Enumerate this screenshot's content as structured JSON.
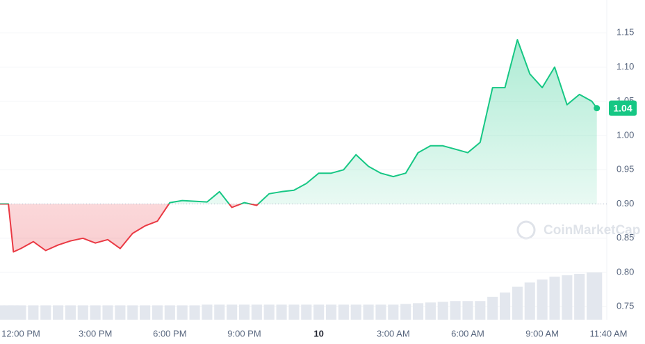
{
  "chart_data": {
    "type": "line",
    "x": [
      -0.84,
      -0.5,
      -0.3,
      0,
      0.5,
      1.0,
      1.5,
      2.0,
      2.5,
      3.0,
      3.5,
      4.0,
      4.5,
      5.0,
      5.5,
      6.0,
      6.5,
      7.0,
      7.5,
      8.0,
      8.5,
      9.0,
      9.5,
      10.0,
      10.5,
      11.0,
      11.5,
      12.0,
      12.5,
      13.0,
      13.5,
      14.0,
      14.5,
      15.0,
      15.5,
      16.0,
      16.5,
      17.0,
      17.5,
      18.0,
      18.5,
      19.0,
      19.5,
      20.0,
      20.5,
      21.0,
      21.5,
      22.0,
      22.5,
      23.0,
      23.2
    ],
    "series": [
      {
        "color": "#16c784",
        "below_color": "#ea3943",
        "values": [
          0.9,
          0.9,
          0.83,
          0.835,
          0.845,
          0.832,
          0.84,
          0.846,
          0.85,
          0.843,
          0.848,
          0.835,
          0.857,
          0.868,
          0.875,
          0.902,
          0.905,
          0.904,
          0.903,
          0.918,
          0.895,
          0.902,
          0.898,
          0.915,
          0.918,
          0.92,
          0.93,
          0.945,
          0.945,
          0.95,
          0.972,
          0.955,
          0.945,
          0.94,
          0.945,
          0.975,
          0.985,
          0.985,
          0.98,
          0.975,
          0.99,
          1.07,
          1.07,
          1.14,
          1.09,
          1.07,
          1.1,
          1.045,
          1.06,
          1.05,
          1.04
        ]
      }
    ],
    "volume": [
      1.0,
      1.0,
      1.0,
      1.0,
      1.0,
      1.0,
      1.0,
      1.0,
      1.0,
      1.0,
      1.0,
      1.0,
      1.0,
      1.0,
      1.0,
      1.0,
      1.0,
      1.0,
      1.05,
      1.05,
      1.05,
      1.05,
      1.05,
      1.05,
      1.05,
      1.05,
      1.05,
      1.05,
      1.05,
      1.05,
      1.05,
      1.05,
      1.05,
      1.05,
      1.1,
      1.15,
      1.2,
      1.25,
      1.3,
      1.3,
      1.3,
      1.6,
      1.9,
      2.3,
      2.6,
      2.8,
      3.0,
      3.1,
      3.2,
      3.3,
      3.3
    ],
    "baseline": 0.9,
    "xlim": [
      -0.84,
      23.6
    ],
    "xticks": [
      {
        "value": 0,
        "label": "12:00 PM"
      },
      {
        "value": 3,
        "label": "3:00 PM"
      },
      {
        "value": 6,
        "label": "6:00 PM"
      },
      {
        "value": 9,
        "label": "9:00 PM"
      },
      {
        "value": 12,
        "label": "10"
      },
      {
        "value": 15,
        "label": "3:00 AM"
      },
      {
        "value": 18,
        "label": "6:00 AM"
      },
      {
        "value": 21,
        "label": "9:00 AM"
      },
      {
        "value": 23.67,
        "label": "11:40 AM"
      }
    ],
    "ylim": [
      0.731,
      1.198
    ],
    "yticks": [
      {
        "value": 0.75,
        "label": "0.75"
      },
      {
        "value": 0.8,
        "label": "0.80"
      },
      {
        "value": 0.85,
        "label": "0.85"
      },
      {
        "value": 0.9,
        "label": "0.90"
      },
      {
        "value": 0.95,
        "label": "0.95"
      },
      {
        "value": 1.0,
        "label": "1.00"
      },
      {
        "value": 1.05,
        "label": "1.05"
      },
      {
        "value": 1.1,
        "label": "1.10"
      },
      {
        "value": 1.15,
        "label": "1.15"
      }
    ],
    "grid": true,
    "watermark": "CoinMarketCap"
  }
}
